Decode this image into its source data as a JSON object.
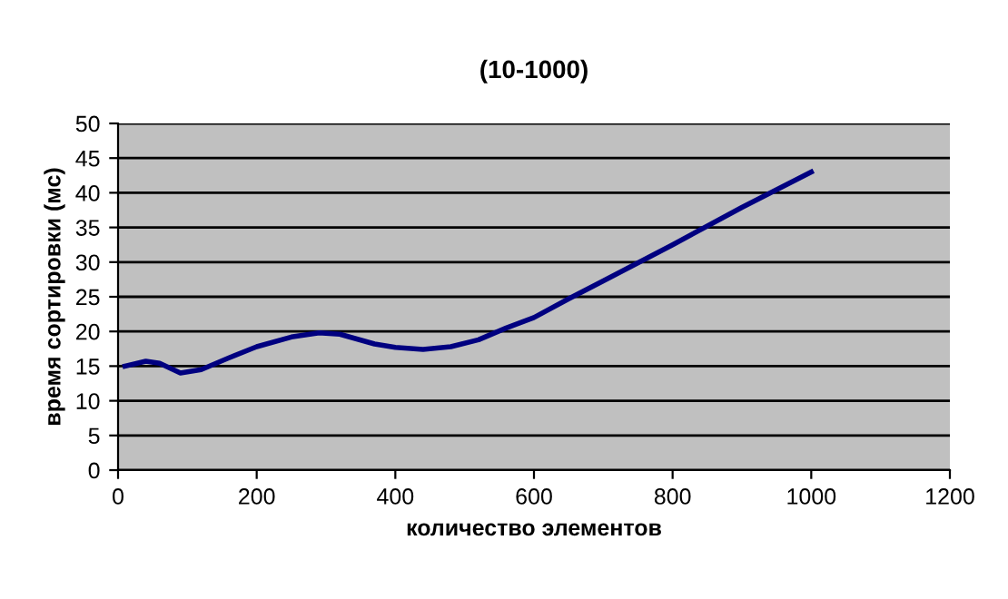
{
  "chart_data": {
    "type": "line",
    "title": "(10-1000)",
    "xlabel": "количество элементов",
    "ylabel": "время сортировки (мс)",
    "x": [
      10,
      40,
      60,
      90,
      120,
      160,
      200,
      250,
      290,
      320,
      370,
      400,
      440,
      480,
      520,
      560,
      600,
      650,
      700,
      800,
      900,
      1000
    ],
    "series": [
      {
        "color": "#000080",
        "values": [
          15,
          15.7,
          15.4,
          14,
          14.5,
          16.2,
          17.8,
          19.2,
          19.8,
          19.6,
          18.2,
          17.7,
          17.4,
          17.8,
          18.8,
          20.5,
          22,
          24.7,
          27.3,
          32.5,
          37.9,
          43
        ]
      }
    ],
    "xlim": [
      0,
      1200
    ],
    "xticks": [
      0,
      200,
      400,
      600,
      800,
      1000,
      1200
    ],
    "ylim": [
      0,
      50
    ],
    "yticks": [
      0,
      5,
      10,
      15,
      20,
      25,
      30,
      35,
      40,
      45,
      50
    ],
    "grid": "y",
    "legend": false,
    "marker": "none",
    "line_style": "solid"
  }
}
